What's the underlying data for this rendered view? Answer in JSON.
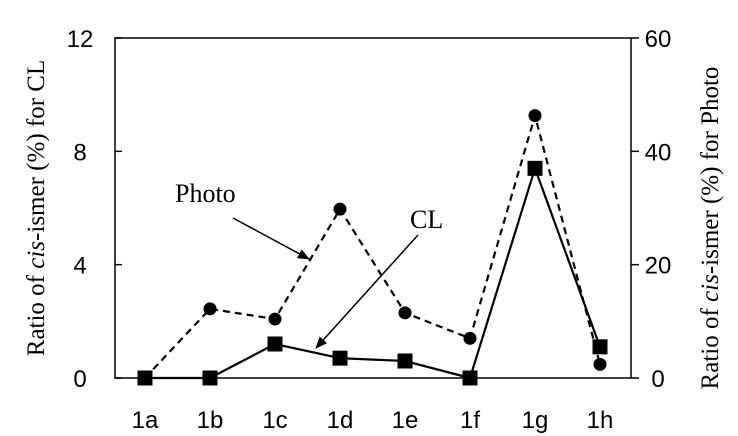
{
  "chart_data": {
    "type": "line",
    "categories": [
      "1a",
      "1b",
      "1c",
      "1d",
      "1e",
      "1f",
      "1g",
      "1h"
    ],
    "y_left": {
      "label_prefix": "Ratio of ",
      "label_italic": "cis",
      "label_suffix": "-ismer (%) for CL",
      "ylim": [
        0,
        12
      ],
      "ticks": [
        "0",
        "4",
        "8",
        "12"
      ]
    },
    "y_right": {
      "label_prefix": "Ratio of ",
      "label_italic": "cis",
      "label_suffix": "-ismer (%) for Photo",
      "ylim": [
        0,
        60
      ],
      "ticks": [
        "0",
        "20",
        "40",
        "60"
      ]
    },
    "series": [
      {
        "name": "CL",
        "axis": "left",
        "line": "solid",
        "marker": "square",
        "values": [
          0,
          0,
          1.2,
          0.7,
          0.6,
          0,
          7.4,
          1.1
        ]
      },
      {
        "name": "Photo",
        "axis": "right",
        "line": "dashed",
        "marker": "circle",
        "values": [
          0,
          12.2,
          10.4,
          29.8,
          11.5,
          7.0,
          46.3,
          2.4
        ]
      }
    ],
    "annotations": [
      {
        "text": "Photo",
        "points_to_series": "Photo"
      },
      {
        "text": "CL",
        "points_to_series": "CL"
      }
    ],
    "grid": false,
    "legend": "none"
  }
}
